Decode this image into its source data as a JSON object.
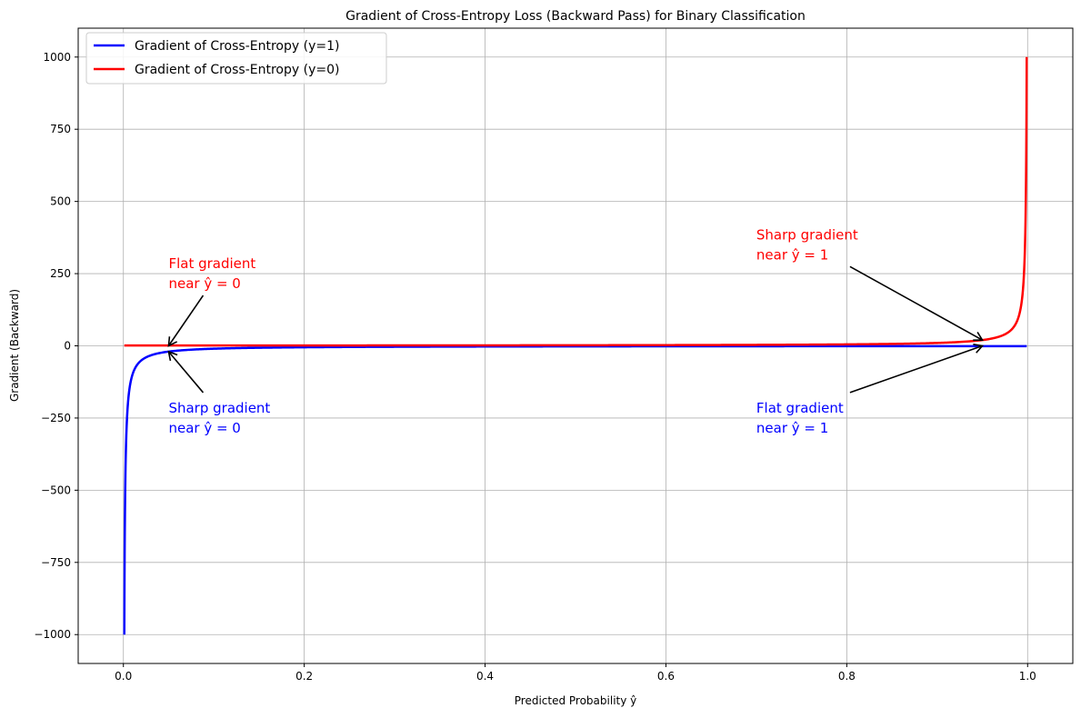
{
  "chart_data": {
    "type": "line",
    "title": "Gradient of Cross-Entropy Loss (Backward Pass) for Binary Classification",
    "xlabel": "Predicted Probability ŷ",
    "ylabel": "Gradient (Backward)",
    "xlim": [
      -0.05,
      1.05
    ],
    "ylim": [
      -1100,
      1100
    ],
    "xticks": [
      0.0,
      0.2,
      0.4,
      0.6,
      0.8,
      1.0
    ],
    "xtick_labels": [
      "0.0",
      "0.2",
      "0.4",
      "0.6",
      "0.8",
      "1.0"
    ],
    "yticks": [
      -1000,
      -750,
      -500,
      -250,
      0,
      250,
      500,
      750,
      1000
    ],
    "ytick_labels": [
      "−1000",
      "−750",
      "−500",
      "−250",
      "0",
      "250",
      "500",
      "750",
      "1000"
    ],
    "grid": true,
    "legend_position": "top-left",
    "series": [
      {
        "name": "Gradient of Cross-Entropy (y=1)",
        "color": "#0000ff",
        "formula": "-1/x",
        "domain": [
          0.001,
          0.999
        ],
        "sample_points": [
          [
            0.001,
            -1000
          ],
          [
            0.005,
            -200
          ],
          [
            0.01,
            -100
          ],
          [
            0.05,
            -20
          ],
          [
            0.1,
            -10
          ],
          [
            0.5,
            -2
          ],
          [
            0.9,
            -1.11
          ],
          [
            0.999,
            -1.001
          ]
        ]
      },
      {
        "name": "Gradient of Cross-Entropy (y=0)",
        "color": "#ff0000",
        "formula": "1/(1-x)",
        "domain": [
          0.001,
          0.999
        ],
        "sample_points": [
          [
            0.001,
            1.001
          ],
          [
            0.1,
            1.11
          ],
          [
            0.5,
            2
          ],
          [
            0.9,
            10
          ],
          [
            0.95,
            20
          ],
          [
            0.99,
            100
          ],
          [
            0.995,
            200
          ],
          [
            0.999,
            1000
          ]
        ]
      }
    ],
    "annotations": [
      {
        "lines": [
          "Flat gradient",
          "near ŷ = 0"
        ],
        "color": "#ff0000",
        "text_xy": [
          0.05,
          250
        ],
        "arrow_to": [
          0.05,
          0
        ]
      },
      {
        "lines": [
          "Sharp gradient",
          "near ŷ = 0"
        ],
        "color": "#0000ff",
        "text_xy": [
          0.05,
          -250
        ],
        "arrow_to": [
          0.05,
          -20
        ]
      },
      {
        "lines": [
          "Sharp gradient",
          "near ŷ = 1"
        ],
        "color": "#ff0000",
        "text_xy": [
          0.7,
          350
        ],
        "arrow_to": [
          0.95,
          20
        ]
      },
      {
        "lines": [
          "Flat gradient",
          "near ŷ = 1"
        ],
        "color": "#0000ff",
        "text_xy": [
          0.7,
          -250
        ],
        "arrow_to": [
          0.95,
          0
        ]
      }
    ]
  }
}
